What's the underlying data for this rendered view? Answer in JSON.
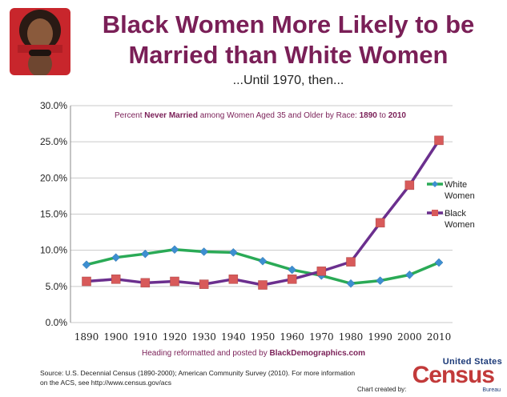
{
  "title_line1": "Black Women More Likely to be",
  "title_line2": "Married than White Women",
  "subtitle": "...Until 1970, then...",
  "caption_prefix": "Heading reformatted and posted by",
  "caption_site": "BlackDemographics.com",
  "source_line1": "Source:  U.S. Decennial Census (1890-2000); American Community Survey (2010). For more information",
  "source_line2": "on the ACS, see http://www.census.gov/acs",
  "chart_credit": "Chart created by:",
  "logo": {
    "top": "United States",
    "main": "Census",
    "bureau": "Bureau"
  },
  "colors": {
    "title": "#7a1f57",
    "white_series": "#2aaa56",
    "white_marker": "#3d8fd1",
    "black_series": "#6b2f8e",
    "black_marker": "#d85a5a",
    "census_red": "#c23a3a",
    "census_blue": "#1c3a78"
  },
  "chart_data": {
    "type": "line",
    "title_parts": [
      {
        "text": "Percent ",
        "bold": false
      },
      {
        "text": "Never Married",
        "bold": true
      },
      {
        "text": " among Women Aged 35 and Older by Race: ",
        "bold": false
      },
      {
        "text": "1890",
        "bold": true
      },
      {
        "text": " to ",
        "bold": false
      },
      {
        "text": "2010",
        "bold": true
      }
    ],
    "x": [
      1890,
      1900,
      1910,
      1920,
      1930,
      1940,
      1950,
      1960,
      1970,
      1980,
      1990,
      2000,
      2010
    ],
    "x_tick_labels": [
      "1890",
      "1900",
      "1910",
      "1920",
      "1930",
      "1940",
      "1950",
      "1960",
      "1970",
      "1980",
      "1990",
      "2000",
      "2010"
    ],
    "y_tick_labels": [
      "0.0%",
      "5.0%",
      "10.0%",
      "15.0%",
      "20.0%",
      "25.0%",
      "30.0%"
    ],
    "ylim": [
      0,
      30
    ],
    "y_unit": "%",
    "grid": "horizontal",
    "legend_position": "right",
    "series": [
      {
        "name": "White Women",
        "marker": "diamond",
        "values": [
          8.0,
          9.0,
          9.5,
          10.1,
          9.8,
          9.7,
          8.5,
          7.3,
          6.5,
          5.4,
          5.8,
          6.6,
          8.3
        ]
      },
      {
        "name": "Black Women",
        "marker": "square",
        "values": [
          5.7,
          6.0,
          5.5,
          5.7,
          5.3,
          6.0,
          5.2,
          6.0,
          7.1,
          8.4,
          13.8,
          19.0,
          25.2
        ]
      }
    ]
  }
}
